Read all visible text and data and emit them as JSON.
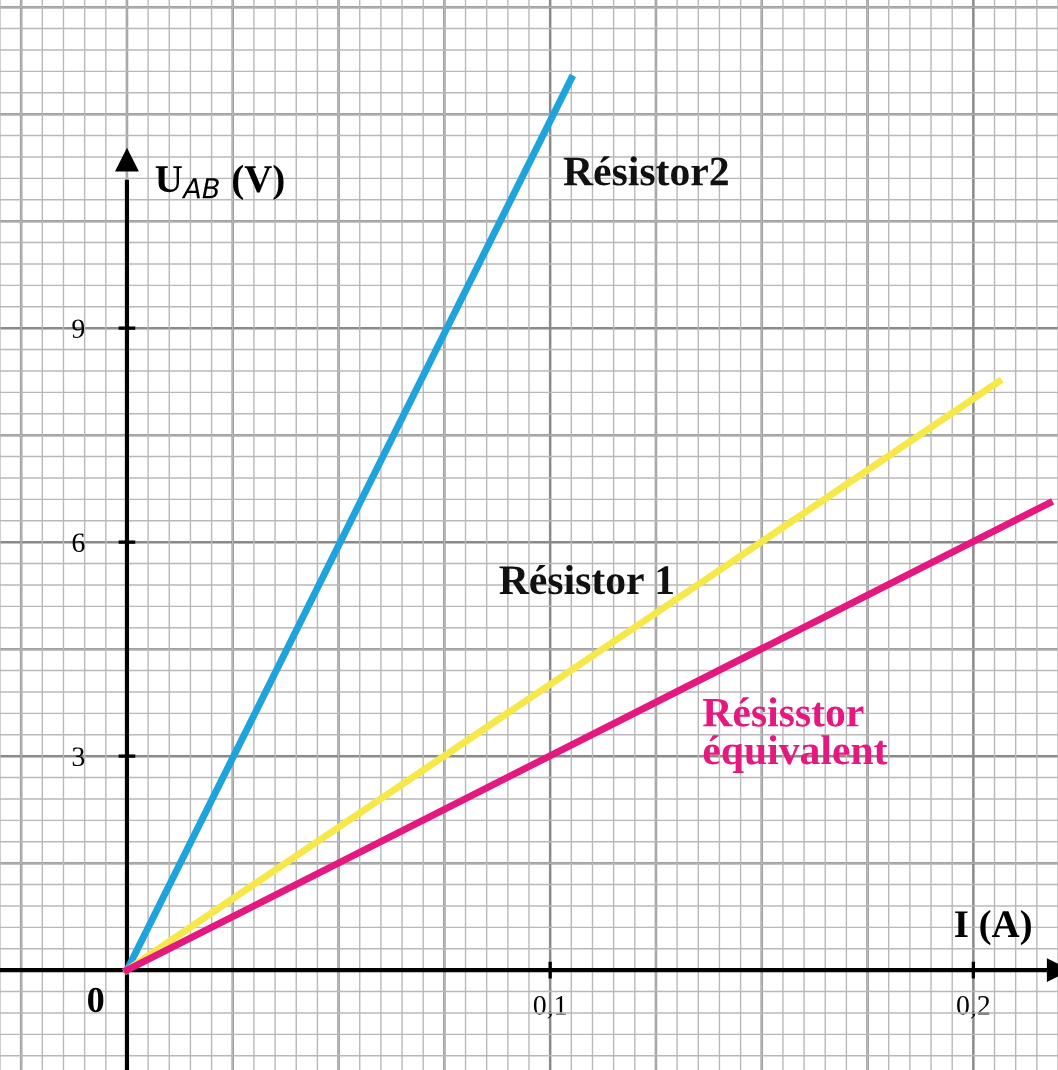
{
  "chart_data": {
    "type": "line",
    "xlabel": "I (A)",
    "ylabel": "U$_{AB}$ (V)",
    "xlim": [
      -0.03,
      0.22
    ],
    "ylim": [
      -1.4,
      13.6
    ],
    "xticks": [
      {
        "value": 0.1,
        "label": "0,1"
      },
      {
        "value": 0.2,
        "label": "0,2"
      }
    ],
    "yticks": [
      3,
      6,
      9
    ],
    "grid": true,
    "legend": false,
    "marker": "none",
    "line_style": "solid",
    "series": [
      {
        "name": "Résistor2",
        "color": "#1fa3dc",
        "x": [
          0,
          0.105
        ],
        "values": [
          0,
          12.5
        ]
      },
      {
        "name": "Résistor 1",
        "color": "#f7e84a",
        "x": [
          0,
          0.206
        ],
        "values": [
          0,
          8.25
        ]
      },
      {
        "name": "Résisstor\néquivalent",
        "color": "#e5187f",
        "x": [
          0,
          0.218
        ],
        "values": [
          0,
          6.55
        ]
      }
    ],
    "annotations": [
      {
        "text": "0",
        "x": 0,
        "y": 0
      }
    ]
  }
}
